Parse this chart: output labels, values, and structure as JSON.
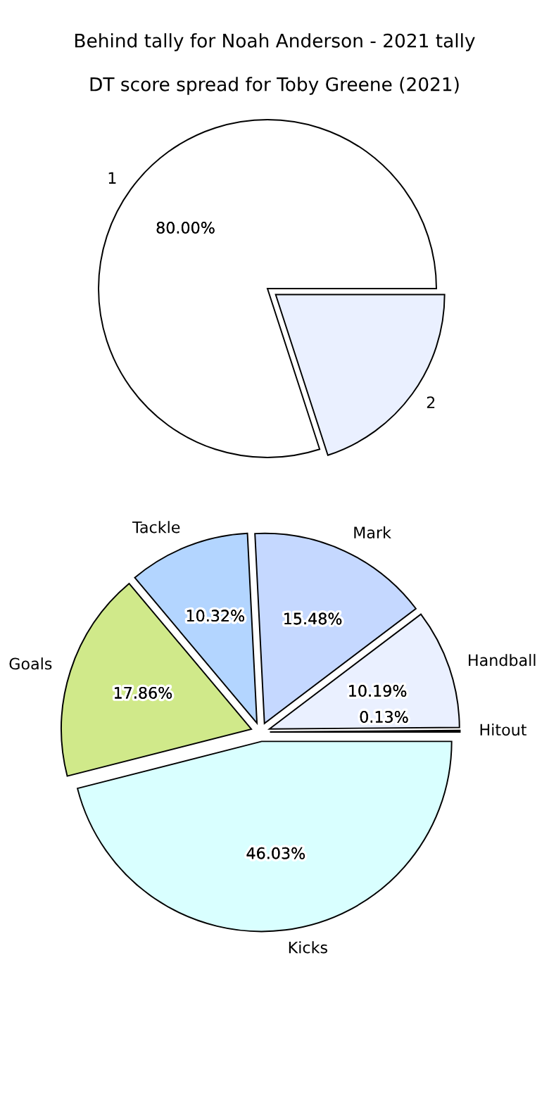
{
  "chart_data": [
    {
      "type": "pie",
      "title": "Behind tally for Noah Anderson - 2021 tally",
      "categories": [
        "1",
        "2"
      ],
      "values": [
        80,
        20
      ],
      "colors": [
        "#ffffff",
        "#eaf0ff"
      ],
      "value_labels": [
        "80.00%",
        null
      ]
    },
    {
      "type": "pie",
      "title": "DT score spread for Toby Greene (2021)",
      "categories": [
        "Hitout",
        "Handball",
        "Mark",
        "Tackle",
        "Goals",
        "Kicks"
      ],
      "values": [
        0.13,
        10.19,
        15.48,
        10.32,
        17.86,
        46.03
      ],
      "colors": [
        "#c8c8c8",
        "#eaf0ff",
        "#c5d8ff",
        "#b3d5ff",
        "#d0e98a",
        "#d9ffff"
      ],
      "value_labels": [
        "0.13%",
        "10.19%",
        "15.48%",
        "10.32%",
        "17.86%",
        "46.03%"
      ]
    }
  ]
}
